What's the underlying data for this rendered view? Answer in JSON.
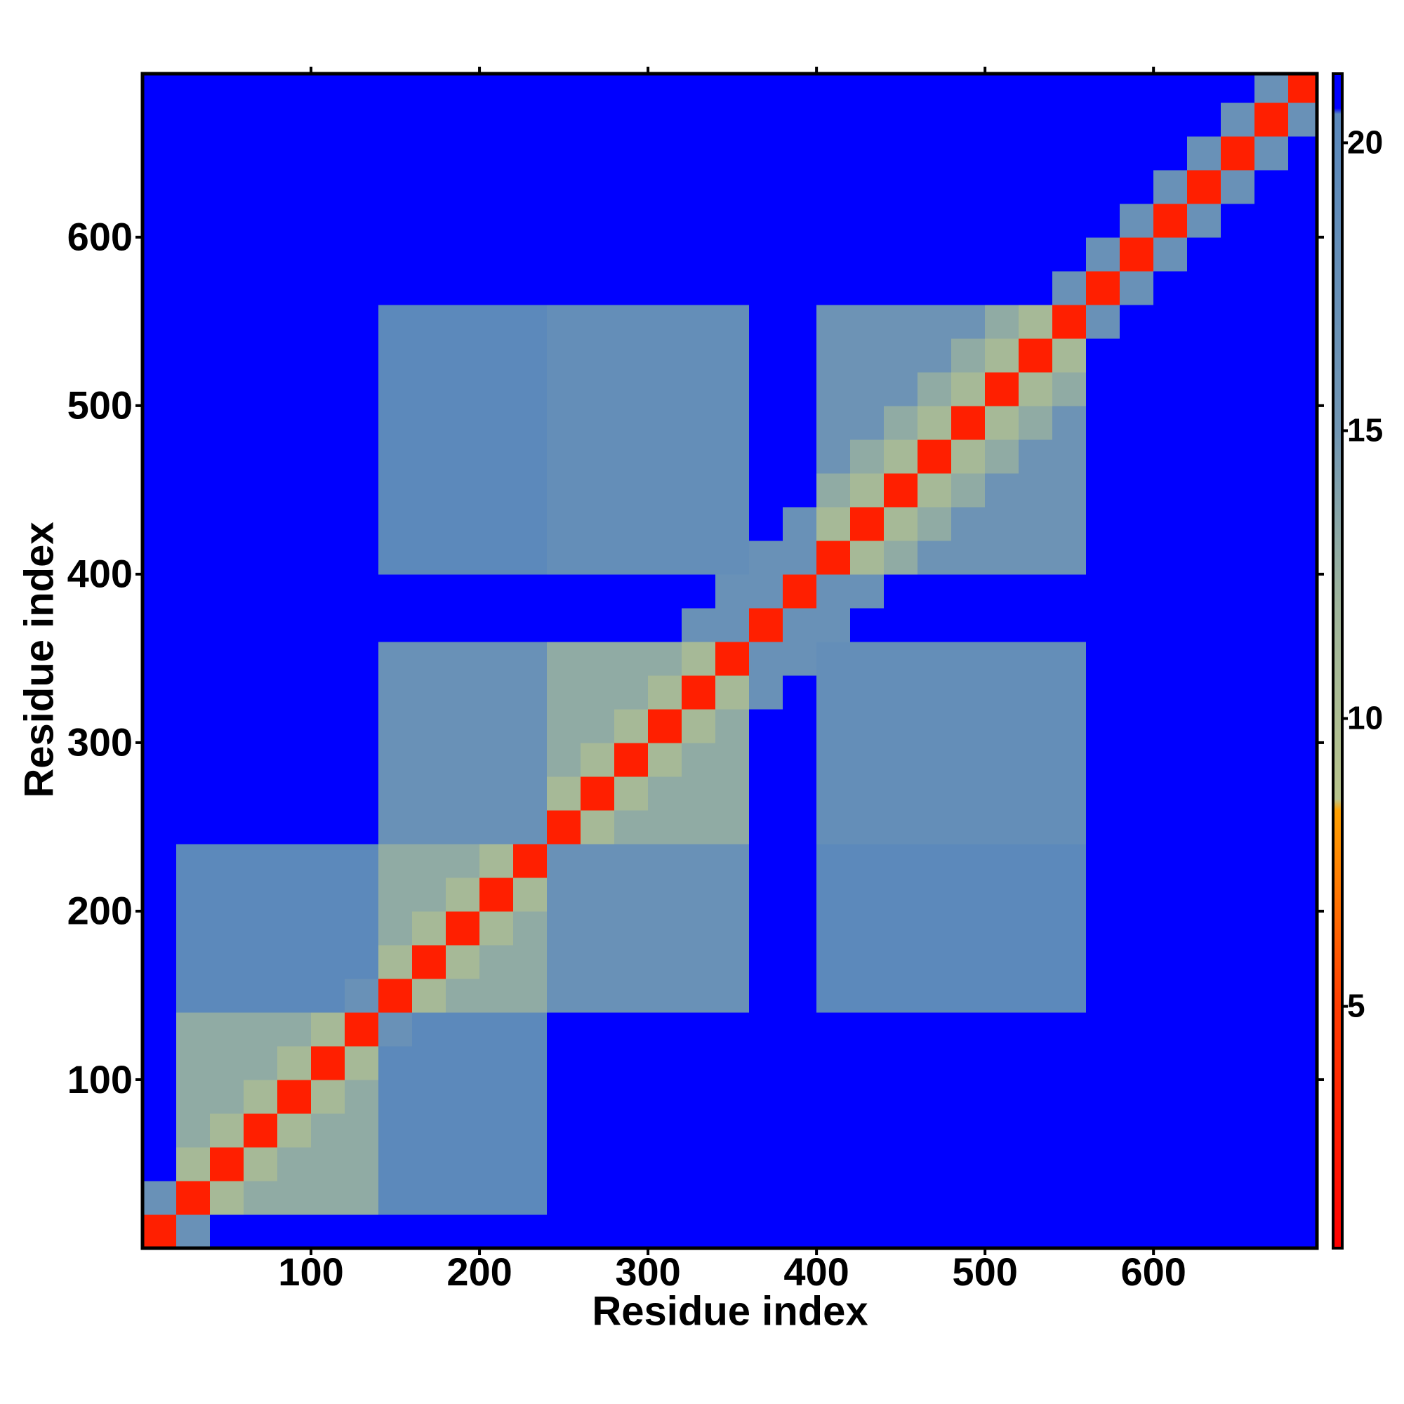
{
  "chart_data": {
    "type": "heatmap",
    "xlabel": "Residue index",
    "ylabel": "Residue index",
    "xlim": [
      0,
      697
    ],
    "ylim": [
      0,
      697
    ],
    "xticks": [
      100,
      200,
      300,
      400,
      500,
      600
    ],
    "yticks": [
      100,
      200,
      300,
      400,
      500,
      600
    ],
    "clim": [
      0.8,
      21.2
    ],
    "cticks": [
      5,
      10,
      15,
      20
    ],
    "colorscale": [
      {
        "value": 0.8,
        "color": "#ff0000"
      },
      {
        "value": 5,
        "color": "#ff3c00"
      },
      {
        "value": 8.4,
        "color": "#ffa000"
      },
      {
        "value": 8.6,
        "color": "#b8c48c"
      },
      {
        "value": 12,
        "color": "#9fb59c"
      },
      {
        "value": 15,
        "color": "#7196b4"
      },
      {
        "value": 20.5,
        "color": "#5a88bc"
      },
      {
        "value": 20.6,
        "color": "#0000ff"
      },
      {
        "value": 21.2,
        "color": "#0000ff"
      }
    ],
    "xbins": [
      0,
      20,
      40,
      60,
      80,
      100,
      120,
      140,
      160,
      180,
      200,
      220,
      240,
      260,
      280,
      300,
      320,
      340,
      360,
      380,
      400,
      420,
      440,
      460,
      480,
      500,
      520,
      540,
      560,
      580,
      600,
      620,
      640,
      660,
      680,
      697
    ],
    "ybins": [
      0,
      20,
      40,
      60,
      80,
      100,
      120,
      140,
      160,
      180,
      200,
      220,
      240,
      260,
      280,
      300,
      320,
      340,
      360,
      380,
      400,
      420,
      440,
      460,
      480,
      500,
      520,
      540,
      560,
      580,
      600,
      620,
      640,
      660,
      680,
      697
    ],
    "z": [
      [
        3,
        17,
        21,
        21,
        21,
        21,
        21,
        21,
        21,
        21,
        21,
        21,
        21,
        21,
        21,
        21,
        21,
        21,
        21,
        21,
        21,
        21,
        21,
        21,
        21,
        21,
        21,
        21,
        21,
        21,
        21,
        21,
        21,
        21,
        21
      ],
      [
        17,
        3,
        11,
        13,
        13,
        13,
        13,
        20,
        20,
        20,
        20,
        20,
        21,
        21,
        21,
        21,
        21,
        21,
        21,
        21,
        21,
        21,
        21,
        21,
        21,
        21,
        21,
        21,
        21,
        21,
        21,
        21,
        21,
        21,
        21
      ],
      [
        21,
        11,
        3,
        11,
        13,
        13,
        13,
        20,
        20,
        20,
        20,
        20,
        21,
        21,
        21,
        21,
        21,
        21,
        21,
        21,
        21,
        21,
        21,
        21,
        21,
        21,
        21,
        21,
        21,
        21,
        21,
        21,
        21,
        21,
        21
      ],
      [
        21,
        13,
        11,
        3,
        11,
        13,
        13,
        20,
        20,
        20,
        20,
        20,
        21,
        21,
        21,
        21,
        21,
        21,
        21,
        21,
        21,
        21,
        21,
        21,
        21,
        21,
        21,
        21,
        21,
        21,
        21,
        21,
        21,
        21,
        21
      ],
      [
        21,
        13,
        13,
        11,
        3,
        11,
        13,
        20,
        20,
        20,
        20,
        20,
        21,
        21,
        21,
        21,
        21,
        21,
        21,
        21,
        21,
        21,
        21,
        21,
        21,
        21,
        21,
        21,
        21,
        21,
        21,
        21,
        21,
        21,
        21
      ],
      [
        21,
        13,
        13,
        13,
        11,
        3,
        11,
        20,
        20,
        20,
        20,
        20,
        21,
        21,
        21,
        21,
        21,
        21,
        21,
        21,
        21,
        21,
        21,
        21,
        21,
        21,
        21,
        21,
        21,
        21,
        21,
        21,
        21,
        21,
        21
      ],
      [
        21,
        13,
        13,
        13,
        13,
        11,
        3,
        17,
        20,
        20,
        20,
        20,
        21,
        21,
        21,
        21,
        21,
        21,
        21,
        21,
        21,
        21,
        21,
        21,
        21,
        21,
        21,
        21,
        21,
        21,
        21,
        21,
        21,
        21,
        21
      ],
      [
        21,
        20,
        20,
        20,
        20,
        20,
        17,
        3,
        11,
        13,
        13,
        13,
        17,
        17,
        17,
        17,
        17,
        17,
        21,
        21,
        20,
        20,
        20,
        20,
        20,
        20,
        20,
        20,
        21,
        21,
        21,
        21,
        21,
        21,
        21
      ],
      [
        21,
        20,
        20,
        20,
        20,
        20,
        20,
        11,
        3,
        11,
        13,
        13,
        17,
        17,
        17,
        17,
        17,
        17,
        21,
        21,
        20,
        20,
        20,
        20,
        20,
        20,
        20,
        20,
        21,
        21,
        21,
        21,
        21,
        21,
        21
      ],
      [
        21,
        20,
        20,
        20,
        20,
        20,
        20,
        13,
        11,
        3,
        11,
        13,
        17,
        17,
        17,
        17,
        17,
        17,
        21,
        21,
        20,
        20,
        20,
        20,
        20,
        20,
        20,
        20,
        21,
        21,
        21,
        21,
        21,
        21,
        21
      ],
      [
        21,
        20,
        20,
        20,
        20,
        20,
        20,
        13,
        13,
        11,
        3,
        11,
        17,
        17,
        17,
        17,
        17,
        17,
        21,
        21,
        20,
        20,
        20,
        20,
        20,
        20,
        20,
        20,
        21,
        21,
        21,
        21,
        21,
        21,
        21
      ],
      [
        21,
        20,
        20,
        20,
        20,
        20,
        20,
        13,
        13,
        13,
        11,
        3,
        17,
        17,
        17,
        17,
        17,
        17,
        21,
        21,
        20,
        20,
        20,
        20,
        20,
        20,
        20,
        20,
        21,
        21,
        21,
        21,
        21,
        21,
        21
      ],
      [
        21,
        21,
        21,
        21,
        21,
        21,
        21,
        17,
        17,
        17,
        17,
        17,
        3,
        11,
        13,
        13,
        13,
        13,
        21,
        21,
        18,
        18,
        18,
        18,
        18,
        18,
        18,
        18,
        21,
        21,
        21,
        21,
        21,
        21,
        21
      ],
      [
        21,
        21,
        21,
        21,
        21,
        21,
        21,
        17,
        17,
        17,
        17,
        17,
        11,
        3,
        11,
        13,
        13,
        13,
        21,
        21,
        18,
        18,
        18,
        18,
        18,
        18,
        18,
        18,
        21,
        21,
        21,
        21,
        21,
        21,
        21
      ],
      [
        21,
        21,
        21,
        21,
        21,
        21,
        21,
        17,
        17,
        17,
        17,
        17,
        13,
        11,
        3,
        11,
        13,
        13,
        21,
        21,
        18,
        18,
        18,
        18,
        18,
        18,
        18,
        18,
        21,
        21,
        21,
        21,
        21,
        21,
        21
      ],
      [
        21,
        21,
        21,
        21,
        21,
        21,
        21,
        17,
        17,
        17,
        17,
        17,
        13,
        13,
        11,
        3,
        11,
        13,
        21,
        21,
        18,
        18,
        18,
        18,
        18,
        18,
        18,
        18,
        21,
        21,
        21,
        21,
        21,
        21,
        21
      ],
      [
        21,
        21,
        21,
        21,
        21,
        21,
        21,
        17,
        17,
        17,
        17,
        17,
        13,
        13,
        13,
        11,
        3,
        11,
        17,
        21,
        18,
        18,
        18,
        18,
        18,
        18,
        18,
        18,
        21,
        21,
        21,
        21,
        21,
        21,
        21
      ],
      [
        21,
        21,
        21,
        21,
        21,
        21,
        21,
        17,
        17,
        17,
        17,
        17,
        13,
        13,
        13,
        13,
        11,
        3,
        17,
        17,
        18,
        18,
        18,
        18,
        18,
        18,
        18,
        18,
        21,
        21,
        21,
        21,
        21,
        21,
        21
      ],
      [
        21,
        21,
        21,
        21,
        21,
        21,
        21,
        21,
        21,
        21,
        21,
        21,
        21,
        21,
        21,
        21,
        17,
        17,
        3,
        17,
        17,
        21,
        21,
        21,
        21,
        21,
        21,
        21,
        21,
        21,
        21,
        21,
        21,
        21,
        21
      ],
      [
        21,
        21,
        21,
        21,
        21,
        21,
        21,
        21,
        21,
        21,
        21,
        21,
        21,
        21,
        21,
        21,
        21,
        17,
        17,
        3,
        17,
        17,
        21,
        21,
        21,
        21,
        21,
        21,
        21,
        21,
        21,
        21,
        21,
        21,
        21
      ],
      [
        21,
        21,
        21,
        21,
        21,
        21,
        21,
        20,
        20,
        20,
        20,
        20,
        18,
        18,
        18,
        18,
        18,
        18,
        17,
        17,
        3,
        11,
        13,
        16,
        16,
        16,
        16,
        16,
        21,
        21,
        21,
        21,
        21,
        21,
        21
      ],
      [
        21,
        21,
        21,
        21,
        21,
        21,
        21,
        20,
        20,
        20,
        20,
        20,
        18,
        18,
        18,
        18,
        18,
        18,
        21,
        17,
        11,
        3,
        11,
        13,
        16,
        16,
        16,
        16,
        21,
        21,
        21,
        21,
        21,
        21,
        21
      ],
      [
        21,
        21,
        21,
        21,
        21,
        21,
        21,
        20,
        20,
        20,
        20,
        20,
        18,
        18,
        18,
        18,
        18,
        18,
        21,
        21,
        13,
        11,
        3,
        11,
        13,
        16,
        16,
        16,
        21,
        21,
        21,
        21,
        21,
        21,
        21
      ],
      [
        21,
        21,
        21,
        21,
        21,
        21,
        21,
        20,
        20,
        20,
        20,
        20,
        18,
        18,
        18,
        18,
        18,
        18,
        21,
        21,
        16,
        13,
        11,
        3,
        11,
        13,
        16,
        16,
        21,
        21,
        21,
        21,
        21,
        21,
        21
      ],
      [
        21,
        21,
        21,
        21,
        21,
        21,
        21,
        20,
        20,
        20,
        20,
        20,
        18,
        18,
        18,
        18,
        18,
        18,
        21,
        21,
        16,
        16,
        13,
        11,
        3,
        11,
        13,
        16,
        21,
        21,
        21,
        21,
        21,
        21,
        21
      ],
      [
        21,
        21,
        21,
        21,
        21,
        21,
        21,
        20,
        20,
        20,
        20,
        20,
        18,
        18,
        18,
        18,
        18,
        18,
        21,
        21,
        16,
        16,
        16,
        13,
        11,
        3,
        11,
        13,
        21,
        21,
        21,
        21,
        21,
        21,
        21
      ],
      [
        21,
        21,
        21,
        21,
        21,
        21,
        21,
        20,
        20,
        20,
        20,
        20,
        18,
        18,
        18,
        18,
        18,
        18,
        21,
        21,
        16,
        16,
        16,
        16,
        13,
        11,
        3,
        11,
        21,
        21,
        21,
        21,
        21,
        21,
        21
      ],
      [
        21,
        21,
        21,
        21,
        21,
        21,
        21,
        20,
        20,
        20,
        20,
        20,
        18,
        18,
        18,
        18,
        18,
        18,
        21,
        21,
        16,
        16,
        16,
        16,
        16,
        13,
        11,
        3,
        17,
        21,
        21,
        21,
        21,
        21,
        21
      ],
      [
        21,
        21,
        21,
        21,
        21,
        21,
        21,
        21,
        21,
        21,
        21,
        21,
        21,
        21,
        21,
        21,
        21,
        21,
        21,
        21,
        21,
        21,
        21,
        21,
        21,
        21,
        21,
        17,
        3,
        17,
        21,
        21,
        21,
        21,
        21
      ],
      [
        21,
        21,
        21,
        21,
        21,
        21,
        21,
        21,
        21,
        21,
        21,
        21,
        21,
        21,
        21,
        21,
        21,
        21,
        21,
        21,
        21,
        21,
        21,
        21,
        21,
        21,
        21,
        21,
        17,
        3,
        17,
        21,
        21,
        21,
        21
      ],
      [
        21,
        21,
        21,
        21,
        21,
        21,
        21,
        21,
        21,
        21,
        21,
        21,
        21,
        21,
        21,
        21,
        21,
        21,
        21,
        21,
        21,
        21,
        21,
        21,
        21,
        21,
        21,
        21,
        21,
        17,
        3,
        17,
        21,
        21,
        21
      ],
      [
        21,
        21,
        21,
        21,
        21,
        21,
        21,
        21,
        21,
        21,
        21,
        21,
        21,
        21,
        21,
        21,
        21,
        21,
        21,
        21,
        21,
        21,
        21,
        21,
        21,
        21,
        21,
        21,
        21,
        21,
        17,
        3,
        17,
        21,
        21
      ],
      [
        21,
        21,
        21,
        21,
        21,
        21,
        21,
        21,
        21,
        21,
        21,
        21,
        21,
        21,
        21,
        21,
        21,
        21,
        21,
        21,
        21,
        21,
        21,
        21,
        21,
        21,
        21,
        21,
        21,
        21,
        21,
        17,
        3,
        17,
        21
      ],
      [
        21,
        21,
        21,
        21,
        21,
        21,
        21,
        21,
        21,
        21,
        21,
        21,
        21,
        21,
        21,
        21,
        21,
        21,
        21,
        21,
        21,
        21,
        21,
        21,
        21,
        21,
        21,
        21,
        21,
        21,
        21,
        21,
        17,
        3,
        17
      ],
      [
        21,
        21,
        21,
        21,
        21,
        21,
        21,
        21,
        21,
        21,
        21,
        21,
        21,
        21,
        21,
        21,
        21,
        21,
        21,
        21,
        21,
        21,
        21,
        21,
        21,
        21,
        21,
        21,
        21,
        21,
        21,
        21,
        21,
        17,
        3
      ]
    ]
  }
}
